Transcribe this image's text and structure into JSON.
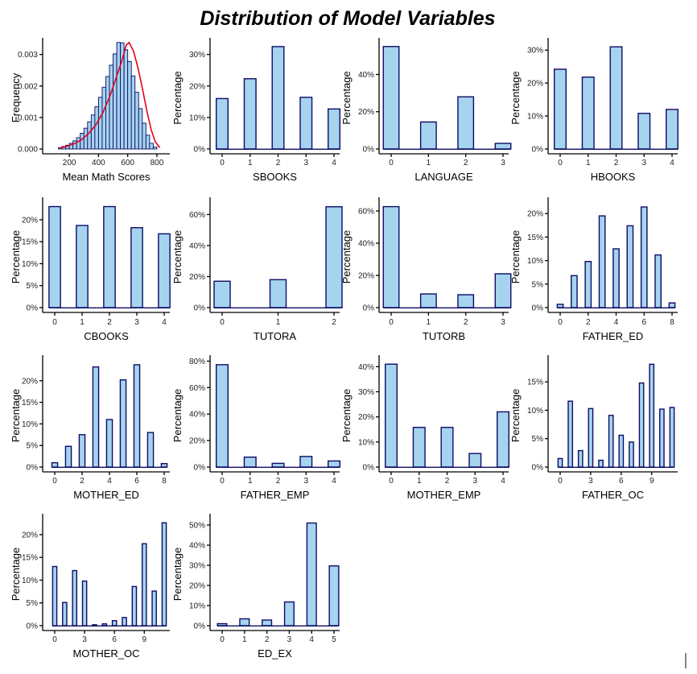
{
  "title": "Distribution of Model Variables",
  "colors": {
    "fill": "#a6d3ee",
    "stroke": "#0c0c66",
    "density": "#e3001b"
  },
  "chart_data": [
    {
      "type": "bar",
      "subtype": "histogram",
      "xlabel": "Mean Math Scores",
      "ylabel": "Frequency",
      "xlim": [
        100,
        850
      ],
      "ylim": [
        0,
        0.0034
      ],
      "xticks": [
        200,
        400,
        600,
        800
      ],
      "xtick_labels": [
        "200",
        "400",
        "600",
        "800"
      ],
      "yticks": [
        0,
        0.001,
        0.002,
        0.003
      ],
      "ytick_labels": [
        "0.000",
        "0.001",
        "0.002",
        "0.003"
      ],
      "bin_start": 125,
      "bin_width": 25,
      "values": [
        4e-05,
        8e-05,
        0.00012,
        0.00018,
        0.00026,
        0.00036,
        0.0005,
        0.00066,
        0.00086,
        0.00108,
        0.00134,
        0.00164,
        0.00196,
        0.0023,
        0.00266,
        0.00302,
        0.00338,
        0.00337,
        0.00315,
        0.00278,
        0.00232,
        0.0018,
        0.00128,
        0.00082,
        0.00044,
        0.00018,
        6e-05
      ],
      "density_x": [
        130,
        180,
        230,
        280,
        330,
        380,
        430,
        480,
        520,
        560,
        590,
        610,
        640,
        670,
        700,
        730,
        760,
        790,
        820
      ],
      "density_y": [
        3e-05,
        8e-05,
        0.00016,
        0.00028,
        0.00048,
        0.00075,
        0.00115,
        0.0017,
        0.00225,
        0.0028,
        0.0033,
        0.00338,
        0.0031,
        0.00258,
        0.00194,
        0.00124,
        0.00062,
        0.00022,
        4e-05
      ]
    },
    {
      "type": "bar",
      "xlabel": "SBOOKS",
      "ylabel": "Percentage",
      "categories": [
        0,
        1,
        2,
        3,
        4
      ],
      "values": [
        16,
        22.3,
        32.5,
        16.4,
        12.7
      ],
      "xticks": [
        0,
        1,
        2,
        3,
        4
      ],
      "ylim": [
        0,
        34
      ],
      "yticks": [
        0,
        10,
        20,
        30
      ]
    },
    {
      "type": "bar",
      "xlabel": "LANGUAGE",
      "ylabel": "Percentage",
      "categories": [
        0,
        1,
        2,
        3
      ],
      "values": [
        55,
        14.5,
        28,
        3
      ],
      "xticks": [
        0,
        1,
        2,
        3
      ],
      "ylim": [
        0,
        57.5
      ],
      "yticks": [
        0,
        20,
        40
      ]
    },
    {
      "type": "bar",
      "xlabel": "HBOOKS",
      "ylabel": "Percentage",
      "categories": [
        0,
        1,
        2,
        3,
        4
      ],
      "values": [
        24.2,
        21.8,
        31,
        10.8,
        12
      ],
      "xticks": [
        0,
        1,
        2,
        3,
        4
      ],
      "ylim": [
        0,
        32.5
      ],
      "yticks": [
        0,
        10,
        20,
        30
      ]
    },
    {
      "type": "bar",
      "xlabel": "CBOOKS",
      "ylabel": "Percentage",
      "categories": [
        0,
        1,
        2,
        3,
        4
      ],
      "values": [
        23,
        18.7,
        23,
        18.2,
        16.8
      ],
      "xticks": [
        0,
        1,
        2,
        3,
        4
      ],
      "ylim": [
        0,
        24.2
      ],
      "yticks": [
        0,
        5,
        10,
        15,
        20
      ]
    },
    {
      "type": "bar",
      "xlabel": "TUTORA",
      "ylabel": "Percentage",
      "categories": [
        0,
        1,
        2
      ],
      "values": [
        17,
        18,
        65
      ],
      "xticks": [
        0,
        1,
        2
      ],
      "ylim": [
        0,
        68.5
      ],
      "yticks": [
        0,
        20,
        40,
        60
      ]
    },
    {
      "type": "bar",
      "xlabel": "TUTORB",
      "ylabel": "Percentage",
      "categories": [
        0,
        1,
        2,
        3
      ],
      "values": [
        62.7,
        8.5,
        8,
        21
      ],
      "xticks": [
        0,
        1,
        2,
        3
      ],
      "ylim": [
        0,
        66
      ],
      "yticks": [
        0,
        20,
        40,
        60
      ]
    },
    {
      "type": "bar",
      "xlabel": "FATHER_ED",
      "ylabel": "Percentage",
      "categories": [
        0,
        1,
        2,
        3,
        4,
        5,
        6,
        7,
        8
      ],
      "values": [
        0.7,
        6.8,
        9.8,
        19.5,
        12.5,
        17.4,
        21.4,
        11.2,
        1
      ],
      "xticks": [
        0,
        2,
        4,
        6,
        8
      ],
      "ylim": [
        0,
        22.6
      ],
      "yticks": [
        0,
        5,
        10,
        15,
        20
      ]
    },
    {
      "type": "bar",
      "xlabel": "MOTHER_ED",
      "ylabel": "Percentage",
      "categories": [
        0,
        1,
        2,
        3,
        4,
        5,
        6,
        7,
        8
      ],
      "values": [
        1,
        4.8,
        7.5,
        23.2,
        11,
        20.2,
        23.7,
        8,
        0.8
      ],
      "xticks": [
        0,
        2,
        4,
        6,
        8
      ],
      "ylim": [
        0,
        25
      ],
      "yticks": [
        0,
        5,
        10,
        15,
        20
      ]
    },
    {
      "type": "bar",
      "xlabel": "FATHER_EMP",
      "ylabel": "Percentage",
      "categories": [
        0,
        1,
        2,
        3,
        4
      ],
      "values": [
        77.3,
        7.5,
        2.8,
        8,
        4.6
      ],
      "xticks": [
        0,
        1,
        2,
        3,
        4
      ],
      "ylim": [
        0,
        81.5
      ],
      "yticks": [
        0,
        20,
        40,
        60,
        80
      ]
    },
    {
      "type": "bar",
      "xlabel": "MOTHER_EMP",
      "ylabel": "Percentage",
      "categories": [
        0,
        1,
        2,
        3,
        4
      ],
      "values": [
        41,
        15.8,
        15.8,
        5.4,
        22
      ],
      "xticks": [
        0,
        1,
        2,
        3,
        4
      ],
      "ylim": [
        0,
        43
      ],
      "yticks": [
        0,
        10,
        20,
        30,
        40
      ]
    },
    {
      "type": "bar",
      "xlabel": "FATHER_OC",
      "ylabel": "Percentage",
      "categories": [
        0,
        1,
        2,
        3,
        4,
        5,
        6,
        7,
        8,
        9,
        10,
        11
      ],
      "values": [
        1.5,
        11.6,
        2.9,
        10.3,
        1.2,
        9.1,
        5.6,
        4.4,
        14.8,
        18.1,
        10.2,
        10.5
      ],
      "xticks": [
        0,
        3,
        6,
        9
      ],
      "ylim": [
        0,
        19
      ],
      "yticks": [
        0,
        5,
        10,
        15
      ]
    },
    {
      "type": "bar",
      "xlabel": "MOTHER_OC",
      "ylabel": "Percentage",
      "categories": [
        0,
        1,
        2,
        3,
        4,
        5,
        6,
        7,
        8,
        9,
        10,
        11
      ],
      "values": [
        13,
        5.1,
        12.1,
        9.8,
        0.2,
        0.4,
        1.1,
        1.8,
        8.6,
        18,
        7.6,
        22.6
      ],
      "xticks": [
        0,
        3,
        6,
        9
      ],
      "ylim": [
        0,
        23.7
      ],
      "yticks": [
        0,
        5,
        10,
        15,
        20
      ]
    },
    {
      "type": "bar",
      "xlabel": "ED_EX",
      "ylabel": "Percentage",
      "categories": [
        0,
        1,
        2,
        3,
        4,
        5
      ],
      "values": [
        1,
        3.4,
        2.8,
        11.8,
        51,
        29.7
      ],
      "xticks": [
        0,
        1,
        2,
        3,
        4,
        5
      ],
      "ylim": [
        0,
        53.6
      ],
      "yticks": [
        0,
        10,
        20,
        30,
        40,
        50
      ]
    }
  ]
}
